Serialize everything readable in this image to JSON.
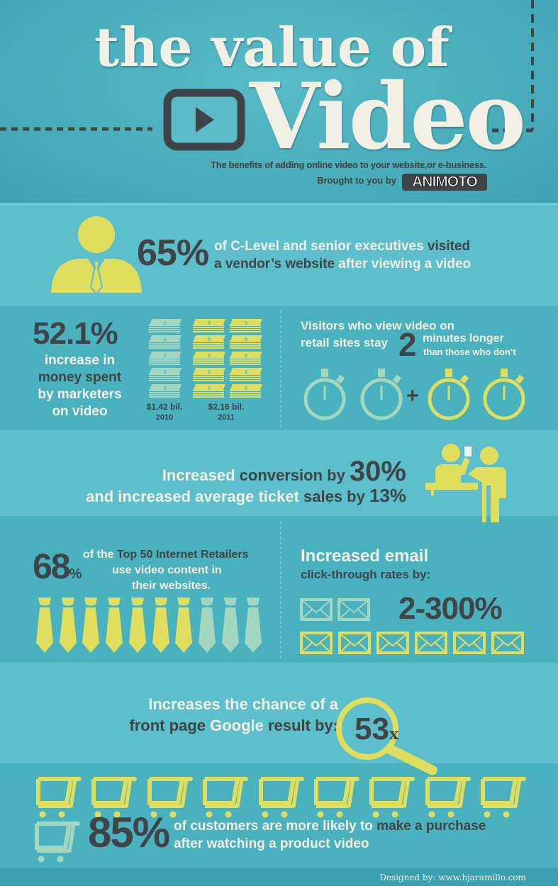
{
  "colors": {
    "background": "#46a9b8",
    "band_light": "#5cbfcb",
    "text_dark": "#3e4447",
    "text_cream": "#f2efe4",
    "yellow": "#e0de5e",
    "mint": "#a3d7bf"
  },
  "header": {
    "title_line1": "the value of",
    "title_line2": "Video",
    "subtitle": "The benefits of adding online video to your website,or e-business.",
    "brought_by": "Brought to you by",
    "logo_text": "ANIMOTO",
    "icon": "play-button-icon"
  },
  "stat_executives": {
    "value": "65%",
    "line1_a": "of C-Level and senior executives ",
    "line1_b": "visited",
    "line2_a": "a vendor’s website ",
    "line2_b": "after viewing a video",
    "icon": "businessman-icon"
  },
  "stat_spending": {
    "value": "52.1%",
    "lines": [
      "increase in",
      "money spent",
      "by marketers",
      "on video"
    ],
    "bars": [
      {
        "amount": "$1.42 bil.",
        "year": "2010",
        "stacks": 5
      },
      {
        "amount": "$2.16 bil.",
        "year": "2011",
        "stacks": 10
      }
    ],
    "icon": "money-stack-icon"
  },
  "stat_visitors": {
    "line1": "Visitors who view video on",
    "line2": "retail sites stay",
    "number": "2",
    "line3": "minutes longer",
    "line4": "than those who don’t",
    "plus": "+",
    "stopwatches_base": 2,
    "stopwatches_extra": 2,
    "icon": "stopwatch-icon"
  },
  "stat_conversion": {
    "l1_a": "Increased ",
    "l1_b": "conversion by ",
    "l1_value": "30%",
    "l2_a": "and increased average ticket ",
    "l2_b": "sales by ",
    "l2_value": "13%",
    "icon": "cashier-icon"
  },
  "stat_retailers": {
    "value": "68",
    "percent": "%",
    "line1_a": "of the ",
    "line1_b": "Top 50 Internet Retailers",
    "line2": "use video content in",
    "line3": "their websites.",
    "filled": 7,
    "total": 10,
    "icon": "tie-icon"
  },
  "stat_email": {
    "line1": "Increased email",
    "line2": "click-through rates by:",
    "value": "2-300%",
    "base": 2,
    "extra": 6,
    "icon": "envelope-icon"
  },
  "stat_google": {
    "l1": "Increases the chance of a",
    "l2_a": "front page ",
    "l2_b": "Google ",
    "l2_c": "result by:",
    "value": "53",
    "suffix": "x",
    "icon": "magnifier-icon"
  },
  "stat_purchase": {
    "value": "85%",
    "line1_a": "of customers are more likely to ",
    "line1_b": "make a purchase",
    "line2": "after watching a product video",
    "carts": 9,
    "icon": "shopping-cart-icon"
  },
  "footer": {
    "credit": "Designed by:  www.hjaramillo.com"
  }
}
